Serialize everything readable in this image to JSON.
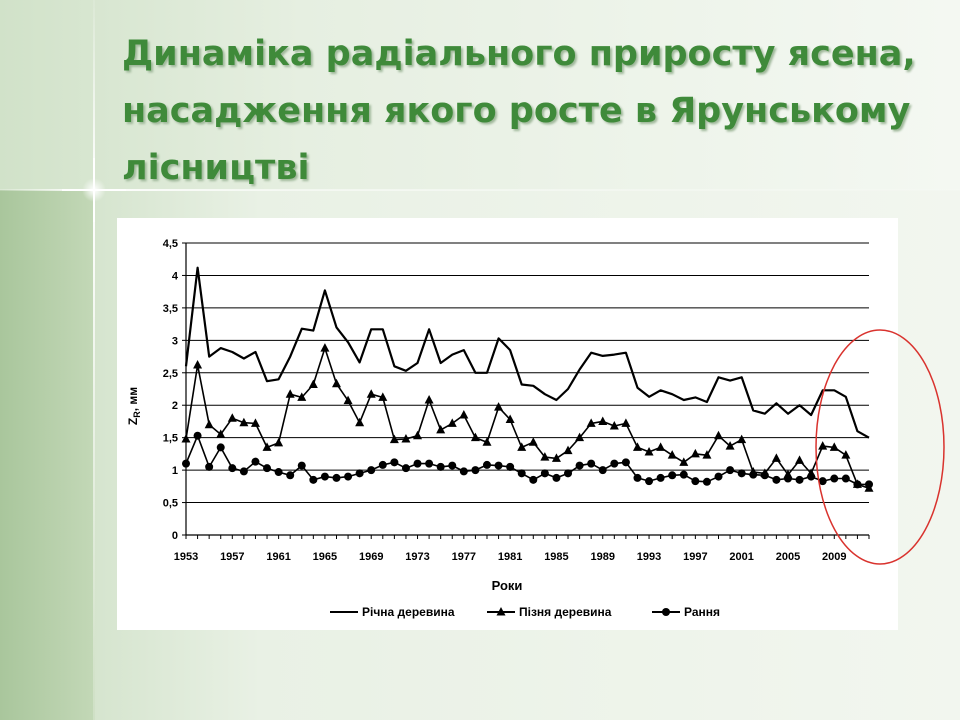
{
  "title": "Динаміка радіального приросту ясена, насадження якого росте в Ярунському лісництві",
  "accent_color": "#3f8a3a",
  "highlight_color": "#d9332e",
  "chart_data": {
    "type": "line",
    "xlabel": "Роки",
    "ylabel_main": "Z",
    "ylabel_sub": "R",
    "ylabel_unit": ", мм",
    "ylim": [
      0,
      4.5
    ],
    "y_ticks": [
      "0",
      "0,5",
      "1",
      "1,5",
      "2",
      "2,5",
      "3",
      "3,5",
      "4",
      "4,5"
    ],
    "x_ticks": [
      "1953",
      "1957",
      "1961",
      "1965",
      "1969",
      "1973",
      "1977",
      "1981",
      "1985",
      "1989",
      "1993",
      "1997",
      "2001",
      "2005",
      "2009"
    ],
    "grid": true,
    "legend_position": "bottom",
    "x": [
      1953,
      1954,
      1955,
      1956,
      1957,
      1958,
      1959,
      1960,
      1961,
      1962,
      1963,
      1964,
      1965,
      1966,
      1967,
      1968,
      1969,
      1970,
      1971,
      1972,
      1973,
      1974,
      1975,
      1976,
      1977,
      1978,
      1979,
      1980,
      1981,
      1982,
      1983,
      1984,
      1985,
      1986,
      1987,
      1988,
      1989,
      1990,
      1991,
      1992,
      1993,
      1994,
      1995,
      1996,
      1997,
      1998,
      1999,
      2000,
      2001,
      2002,
      2003,
      2004,
      2005,
      2006,
      2007,
      2008,
      2009,
      2010,
      2011,
      2012
    ],
    "series": [
      {
        "name": "Річна деревина",
        "marker": "none",
        "values": [
          2.6,
          4.12,
          2.75,
          2.88,
          2.82,
          2.72,
          2.82,
          2.37,
          2.4,
          2.75,
          3.18,
          3.15,
          3.77,
          3.2,
          2.97,
          2.66,
          3.17,
          3.17,
          2.6,
          2.53,
          2.65,
          3.17,
          2.65,
          2.78,
          2.85,
          2.5,
          2.5,
          3.03,
          2.85,
          2.32,
          2.3,
          2.17,
          2.08,
          2.25,
          2.55,
          2.81,
          2.76,
          2.78,
          2.81,
          2.27,
          2.13,
          2.23,
          2.17,
          2.08,
          2.12,
          2.05,
          2.43,
          2.38,
          2.43,
          1.92,
          1.87,
          2.03,
          1.87,
          2.0,
          1.85,
          2.23,
          2.23,
          2.13,
          1.6,
          1.5
        ]
      },
      {
        "name": "Пізня деревина",
        "marker": "triangle",
        "values": [
          1.48,
          2.62,
          1.7,
          1.55,
          1.8,
          1.73,
          1.72,
          1.35,
          1.42,
          2.17,
          2.12,
          2.32,
          2.88,
          2.33,
          2.07,
          1.73,
          2.17,
          2.12,
          1.47,
          1.48,
          1.53,
          2.08,
          1.62,
          1.72,
          1.85,
          1.5,
          1.43,
          1.97,
          1.78,
          1.35,
          1.43,
          1.2,
          1.18,
          1.3,
          1.5,
          1.72,
          1.75,
          1.68,
          1.72,
          1.35,
          1.28,
          1.35,
          1.23,
          1.12,
          1.25,
          1.23,
          1.53,
          1.37,
          1.47,
          0.97,
          0.95,
          1.18,
          0.93,
          1.15,
          0.95,
          1.37,
          1.35,
          1.23,
          0.78,
          0.72
        ]
      },
      {
        "name": "Рання",
        "marker": "circle",
        "values": [
          1.1,
          1.53,
          1.05,
          1.35,
          1.03,
          0.98,
          1.13,
          1.03,
          0.97,
          0.92,
          1.07,
          0.85,
          0.9,
          0.88,
          0.9,
          0.95,
          1.0,
          1.08,
          1.12,
          1.03,
          1.1,
          1.1,
          1.05,
          1.07,
          0.98,
          1.0,
          1.08,
          1.07,
          1.05,
          0.95,
          0.85,
          0.95,
          0.88,
          0.95,
          1.07,
          1.1,
          1.0,
          1.1,
          1.12,
          0.88,
          0.83,
          0.88,
          0.92,
          0.93,
          0.83,
          0.82,
          0.9,
          1.0,
          0.95,
          0.93,
          0.92,
          0.85,
          0.87,
          0.85,
          0.9,
          0.83,
          0.87,
          0.87,
          0.78,
          0.78
        ]
      }
    ]
  }
}
